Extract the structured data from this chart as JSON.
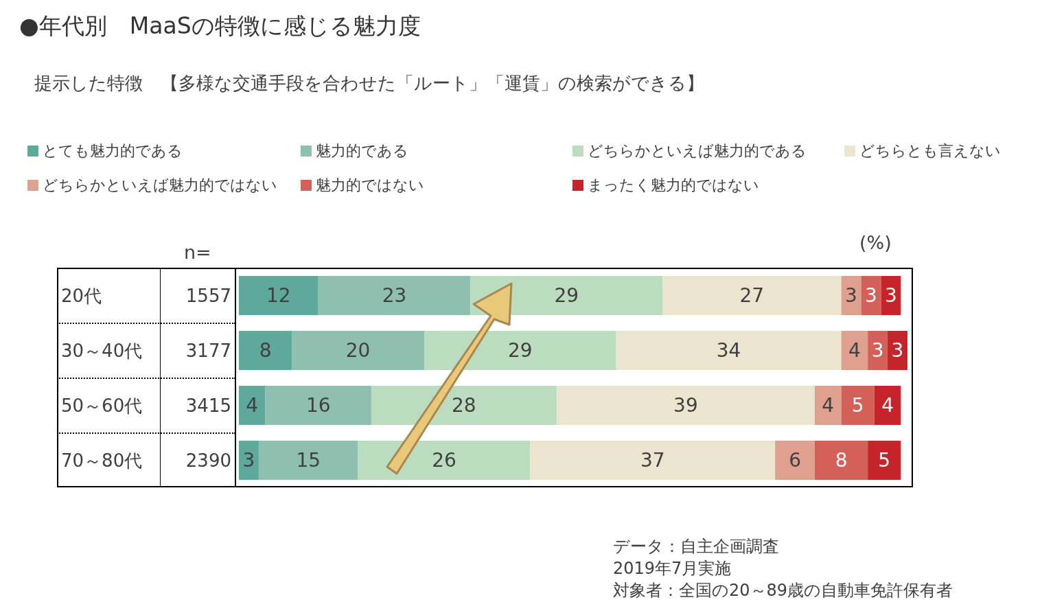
{
  "chart_data": {
    "type": "bar",
    "orientation": "horizontal",
    "stacked": true,
    "title": "●年代別　MaaSの特徴に感じる魅力度",
    "subtitle": "提示した特徴　【多様な交通手段を合わせた「ルート」「運賃」の検索ができる】",
    "categories": [
      "20代",
      "30～40代",
      "50～60代",
      "70～80代"
    ],
    "series": [
      {
        "name": "とても魅力的である",
        "color": "#5fa89c",
        "values": [
          12,
          8,
          4,
          3
        ]
      },
      {
        "name": "魅力的である",
        "color": "#8fbfae",
        "values": [
          23,
          20,
          16,
          15
        ]
      },
      {
        "name": "どちらかといえば魅力的である",
        "color": "#bcdcc0",
        "values": [
          29,
          29,
          28,
          26
        ]
      },
      {
        "name": "どちらとも言えない",
        "color": "#ebe5cf",
        "values": [
          27,
          34,
          39,
          37
        ]
      },
      {
        "name": "どちらかといえば魅力的ではない",
        "color": "#dfa090",
        "values": [
          3,
          4,
          4,
          6
        ]
      },
      {
        "name": "魅力的ではない",
        "color": "#d4605a",
        "values": [
          3,
          3,
          5,
          8
        ]
      },
      {
        "name": "まったく魅力的ではない",
        "color": "#c4242a",
        "values": [
          3,
          3,
          4,
          5
        ]
      }
    ],
    "xlim": [
      0,
      101
    ],
    "tick_labels": false,
    "data_labels": true,
    "legend": "top",
    "annotations": [
      "(%)",
      "n=",
      "1557",
      "3177",
      "3415",
      "2390",
      "データ：自主企画調査",
      "2019年7月実施",
      "対象者：全国の20～89歳の自動車免許保有者"
    ]
  }
}
